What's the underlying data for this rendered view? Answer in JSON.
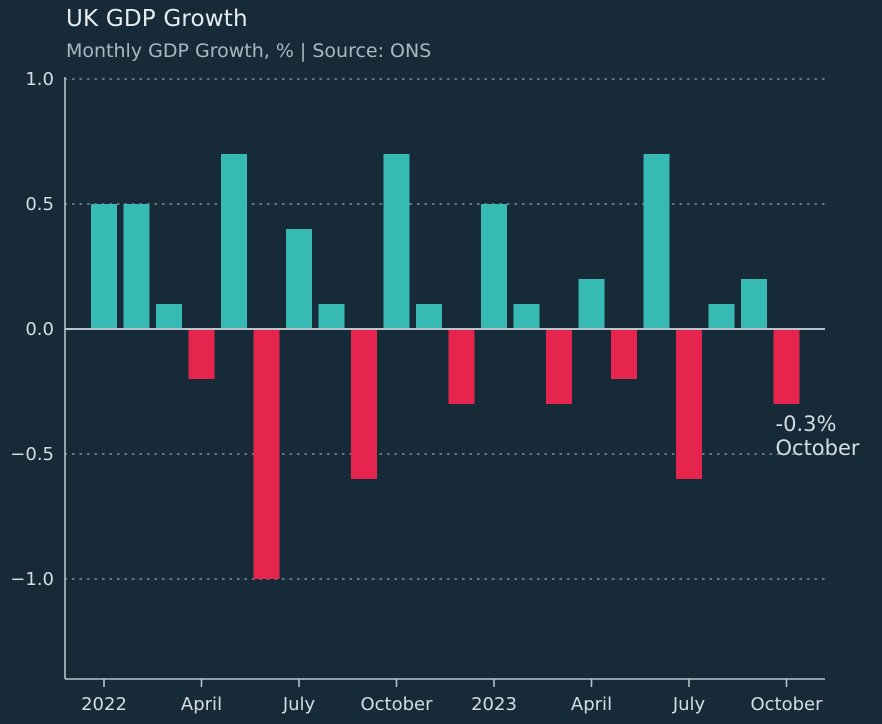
{
  "title": "UK GDP Growth",
  "subtitle": "Monthly GDP Growth, % | Source: ONS",
  "colors": {
    "background": "#162a38",
    "positive": "#37bab3",
    "negative": "#e5254d",
    "grid": "#c3cdd3",
    "axis": "#b7c3ca"
  },
  "chart_data": {
    "type": "bar",
    "categories": [
      "2022-01",
      "2022-02",
      "2022-03",
      "2022-04",
      "2022-05",
      "2022-06",
      "2022-07",
      "2022-08",
      "2022-09",
      "2022-10",
      "2022-11",
      "2022-12",
      "2023-01",
      "2023-02",
      "2023-03",
      "2023-04",
      "2023-05",
      "2023-06",
      "2023-07",
      "2023-08",
      "2023-09",
      "2023-10"
    ],
    "values": [
      0.5,
      0.5,
      0.1,
      -0.2,
      0.7,
      -1.0,
      0.4,
      0.1,
      -0.6,
      0.7,
      0.1,
      -0.3,
      0.5,
      0.1,
      -0.3,
      0.2,
      -0.2,
      0.7,
      -0.6,
      0.1,
      0.2,
      -0.3
    ],
    "ylim": [
      -1.4,
      1.0
    ],
    "yticks": [
      1.0,
      0.5,
      0.0,
      -0.5,
      -1.0
    ],
    "ytick_labels": [
      "1.0",
      "0.5",
      "0.0",
      "−0.5",
      "−1.0"
    ],
    "xticks": [
      {
        "index": 0,
        "label": "2022"
      },
      {
        "index": 3,
        "label": "April"
      },
      {
        "index": 6,
        "label": "July"
      },
      {
        "index": 9,
        "label": "October"
      },
      {
        "index": 12,
        "label": "2023"
      },
      {
        "index": 15,
        "label": "April"
      },
      {
        "index": 18,
        "label": "July"
      },
      {
        "index": 21,
        "label": "October"
      }
    ],
    "grid": true,
    "annotation": {
      "index": 21,
      "value_text": "-0.3%",
      "label": "October"
    }
  }
}
